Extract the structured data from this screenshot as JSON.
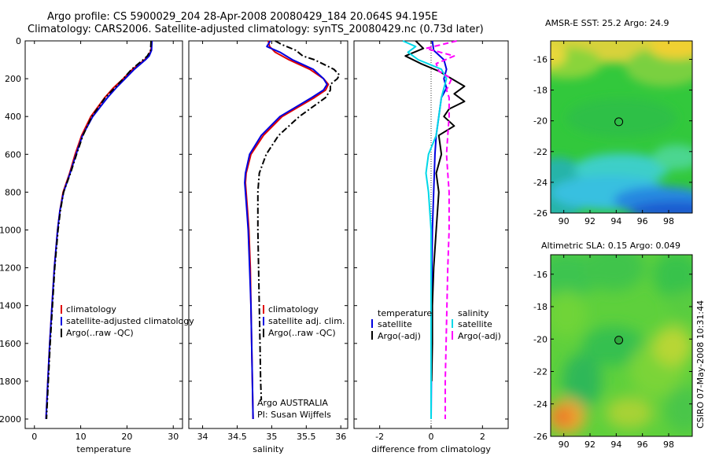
{
  "header": {
    "title_line1": "Argo profile: CS 5900029_204 28-Apr-2008 20080429_184 20.064S 94.195E",
    "title_line2": "Climatology: CARS2006. Satellite-adjusted climatology: synTS_20080429.nc (0.73d later)"
  },
  "footer": {
    "credit": "CSIRO 07-May-2008 10:31:44",
    "argo_country": "Argo AUSTRALIA",
    "pi": "PI: Susan Wijffels"
  },
  "colors": {
    "climatology": "#e00000",
    "satellite": "#0000e0",
    "argo": "#000000",
    "temp_sat_diff": "#00d8e8",
    "salinity_argo_diff": "#ff00ff"
  },
  "chart_data": [
    {
      "type": "line",
      "name": "temperature-profile",
      "xlabel": "temperature",
      "ylabel": "",
      "xlim": [
        -2,
        32
      ],
      "ylim": [
        2050,
        0
      ],
      "xticks": [
        0,
        10,
        20,
        30
      ],
      "yticks": [
        0,
        200,
        400,
        600,
        800,
        1000,
        1200,
        1400,
        1600,
        1800,
        2000
      ],
      "legend": {
        "placement": "bottom-right",
        "entries": [
          "climatology",
          "satellite-adjusted climatology",
          "Argo(..raw -QC)"
        ]
      },
      "series": [
        {
          "name": "climatology",
          "style": "solid",
          "color": "#e00000",
          "depth": [
            0,
            50,
            80,
            100,
            150,
            200,
            250,
            300,
            400,
            500,
            600,
            700,
            800,
            900,
            1000,
            1200,
            1400,
            1600,
            1800,
            2000
          ],
          "values": [
            25.3,
            25.2,
            24.6,
            23.8,
            21.2,
            19.2,
            17.0,
            15.2,
            12.2,
            10.2,
            8.8,
            7.6,
            6.2,
            5.5,
            5.0,
            4.3,
            3.8,
            3.3,
            2.9,
            2.5
          ]
        },
        {
          "name": "satellite-adjusted climatology",
          "style": "solid",
          "color": "#0000e0",
          "depth": [
            0,
            50,
            80,
            100,
            150,
            200,
            250,
            300,
            400,
            500,
            600,
            700,
            800,
            900,
            1000,
            1200,
            1400,
            1600,
            1800,
            2000
          ],
          "values": [
            25.4,
            25.3,
            24.8,
            24.0,
            21.6,
            19.6,
            17.6,
            15.8,
            12.6,
            10.4,
            9.0,
            7.7,
            6.3,
            5.5,
            5.0,
            4.3,
            3.8,
            3.3,
            2.9,
            2.5
          ]
        },
        {
          "name": "Argo(..raw -QC)",
          "style": "dashdot",
          "color": "#000000",
          "depth": [
            0,
            50,
            80,
            100,
            150,
            200,
            250,
            300,
            400,
            500,
            600,
            700,
            800,
            900,
            1000,
            1200,
            1400,
            1600,
            1800,
            2000
          ],
          "values": [
            25.2,
            25.1,
            24.4,
            23.5,
            21.0,
            19.2,
            17.3,
            15.3,
            12.4,
            10.5,
            9.1,
            7.8,
            6.3,
            5.6,
            5.1,
            4.4,
            3.9,
            3.4,
            3.0,
            2.6
          ]
        }
      ]
    },
    {
      "type": "line",
      "name": "salinity-profile",
      "xlabel": "salinity",
      "ylabel": "",
      "xlim": [
        33.8,
        36.1
      ],
      "ylim": [
        2050,
        0
      ],
      "xticks": [
        34,
        34.5,
        35,
        35.5,
        36
      ],
      "legend": {
        "placement": "bottom-right",
        "entries": [
          "climatology",
          "satellite adj. clim.",
          "Argo(..raw -QC)"
        ]
      },
      "series": [
        {
          "name": "climatology",
          "style": "solid",
          "color": "#e00000",
          "depth": [
            0,
            30,
            60,
            100,
            150,
            200,
            230,
            260,
            300,
            400,
            500,
            600,
            700,
            750,
            800,
            900,
            1000,
            1200,
            1400,
            1600,
            1800,
            2000
          ],
          "values": [
            34.95,
            34.97,
            35.05,
            35.25,
            35.55,
            35.75,
            35.82,
            35.78,
            35.62,
            35.15,
            34.88,
            34.7,
            34.63,
            34.62,
            34.63,
            34.65,
            34.67,
            34.69,
            34.7,
            34.71,
            34.72,
            34.73
          ]
        },
        {
          "name": "satellite adj. clim.",
          "style": "solid",
          "color": "#0000e0",
          "depth": [
            0,
            30,
            60,
            100,
            150,
            200,
            230,
            260,
            300,
            400,
            500,
            600,
            700,
            750,
            800,
            900,
            1000,
            1200,
            1400,
            1600,
            1800,
            2000
          ],
          "values": [
            34.98,
            34.93,
            35.12,
            35.3,
            35.6,
            35.75,
            35.8,
            35.75,
            35.58,
            35.12,
            34.85,
            34.68,
            34.62,
            34.61,
            34.62,
            34.64,
            34.66,
            34.68,
            34.7,
            34.71,
            34.72,
            34.73
          ]
        },
        {
          "name": "Argo(..raw -QC)",
          "style": "dashdot",
          "color": "#000000",
          "depth": [
            0,
            20,
            50,
            80,
            100,
            150,
            180,
            200,
            230,
            260,
            300,
            400,
            500,
            600,
            700,
            800,
            900,
            1000,
            1200,
            1400,
            1600,
            1800,
            1900
          ],
          "values": [
            35.05,
            35.15,
            35.35,
            35.45,
            35.62,
            35.9,
            35.98,
            35.95,
            35.85,
            35.85,
            35.78,
            35.4,
            35.1,
            34.92,
            34.82,
            34.8,
            34.8,
            34.8,
            34.81,
            34.82,
            34.83,
            34.84,
            34.85
          ]
        }
      ]
    },
    {
      "type": "line",
      "name": "difference-profile",
      "xlabel": "difference from climatology",
      "ylabel": "",
      "xlim": [
        -3,
        3
      ],
      "ylim": [
        2050,
        0
      ],
      "xticks": [
        -2,
        0,
        2
      ],
      "legend": {
        "placement": "bottom",
        "entries": [
          "temperature",
          "satellite",
          "Argo(-adj)",
          "salinity",
          "satellite",
          "Argo(-adj)"
        ]
      },
      "series": [
        {
          "name": "temperature satellite",
          "style": "solid",
          "color": "#0000e0",
          "depth": [
            0,
            50,
            100,
            150,
            200,
            250,
            300,
            400,
            500,
            600,
            800,
            1000,
            1200,
            1500,
            1800,
            2000
          ],
          "values": [
            0.05,
            0.1,
            0.5,
            0.6,
            0.5,
            0.6,
            0.4,
            0.3,
            0.2,
            0.15,
            0.1,
            0.05,
            0.03,
            0.02,
            0.01,
            0.0
          ]
        },
        {
          "name": "temperature Argo(-adj)",
          "style": "solid",
          "color": "#000000",
          "depth": [
            0,
            40,
            80,
            120,
            160,
            200,
            240,
            280,
            320,
            360,
            400,
            450,
            500,
            600,
            700,
            800,
            1000,
            1200,
            1400,
            1600,
            1800
          ],
          "values": [
            -0.6,
            -0.3,
            -1.0,
            -0.4,
            0.3,
            0.8,
            1.3,
            0.9,
            1.3,
            0.7,
            0.5,
            0.9,
            0.3,
            0.4,
            0.2,
            0.3,
            0.2,
            0.1,
            0.05,
            0.05,
            0.02
          ]
        },
        {
          "name": "salinity satellite",
          "style": "solid",
          "color": "#00d8e8",
          "depth": [
            0,
            30,
            60,
            100,
            150,
            200,
            250,
            300,
            400,
            500,
            600,
            700,
            800,
            1000,
            1500,
            2000
          ],
          "values": [
            -1.1,
            -0.6,
            -0.9,
            -0.5,
            0.4,
            0.6,
            0.5,
            0.4,
            0.3,
            0.2,
            -0.1,
            -0.2,
            -0.1,
            0.0,
            0.0,
            0.0
          ]
        },
        {
          "name": "salinity Argo(-adj)",
          "style": "dashed",
          "color": "#ff00ff",
          "depth": [
            0,
            40,
            80,
            120,
            160,
            200,
            260,
            300,
            400,
            500,
            600,
            700,
            800,
            1000,
            1200,
            1500,
            1800,
            2000
          ],
          "values": [
            1.0,
            -0.2,
            0.9,
            0.2,
            0.3,
            0.8,
            0.6,
            0.7,
            0.7,
            0.65,
            0.6,
            0.65,
            0.7,
            0.7,
            0.65,
            0.6,
            0.55,
            0.55
          ]
        }
      ]
    },
    {
      "type": "heatmap",
      "name": "amsre-sst-map",
      "title": "AMSR-E SST: 25.2  Argo: 24.9",
      "xlim": [
        89,
        99.8
      ],
      "ylim": [
        -26,
        -14.8
      ],
      "xticks": [
        90,
        92,
        94,
        96,
        98
      ],
      "yticks": [
        -16,
        -18,
        -20,
        -22,
        -24,
        -26
      ],
      "marker": {
        "lon": 94.195,
        "lat": -20.064
      }
    },
    {
      "type": "heatmap",
      "name": "altimetric-sla-map",
      "title": "Altimetric SLA: 0.15  Argo: 0.049",
      "xlim": [
        89,
        99.8
      ],
      "ylim": [
        -26,
        -14.8
      ],
      "xticks": [
        90,
        92,
        94,
        96,
        98
      ],
      "yticks": [
        -16,
        -18,
        -20,
        -22,
        -24,
        -26
      ],
      "marker": {
        "lon": 94.195,
        "lat": -20.064
      }
    }
  ]
}
